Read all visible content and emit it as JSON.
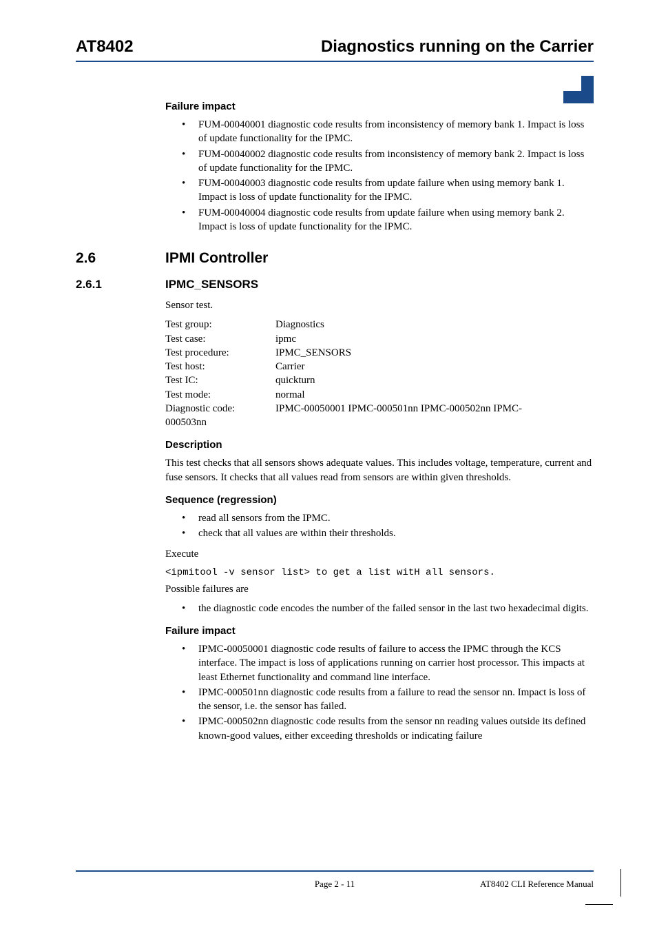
{
  "header": {
    "left": "AT8402",
    "right": "Diagnostics running on the Carrier"
  },
  "failure_impact_1": {
    "heading": "Failure impact",
    "bullets": [
      "FUM-00040001 diagnostic code results from inconsistency of memory bank 1. Impact is loss of update functionality for the IPMC.",
      "FUM-00040002 diagnostic code results from inconsistency of memory bank 2. Impact is loss of update functionality for the IPMC.",
      "FUM-00040003 diagnostic code results from update failure when using memory bank 1. Impact is loss of update functionality for the IPMC.",
      "FUM-00040004 diagnostic code results from update failure when using memory bank 2. Impact is loss of update functionality for the IPMC."
    ]
  },
  "section": {
    "num": "2.6",
    "title": "IPMI Controller"
  },
  "subsection": {
    "num": "2.6.1",
    "title": "IPMC_SENSORS",
    "intro": "Sensor test.",
    "kv": [
      {
        "label": "Test group:",
        "value": "Diagnostics"
      },
      {
        "label": "Test case:",
        "value": "ipmc"
      },
      {
        "label": "Test procedure:",
        "value": "IPMC_SENSORS"
      },
      {
        "label": "Test host:",
        "value": "Carrier"
      },
      {
        "label": "Test IC:",
        "value": "quickturn"
      },
      {
        "label": "Test mode:",
        "value": "normal"
      }
    ],
    "diag_label": "Diagnostic code:",
    "diag_value": "IPMC-00050001 IPMC-000501nn IPMC-000502nn IPMC-",
    "diag_value2": "000503nn"
  },
  "description": {
    "heading": "Description",
    "text": "This test checks that all sensors shows adequate values. This includes voltage, temperature, current and fuse sensors. It checks that all values read from sensors are within given thresholds."
  },
  "sequence": {
    "heading": "Sequence (regression)",
    "bullets": [
      "read all sensors from the IPMC.",
      "check that all values are within their thresholds."
    ],
    "execute_label": "Execute",
    "execute_cmd": "<ipmitool -v sensor list> to get a list witH all sensors.",
    "possible_label": "Possible failures are",
    "possible_bullets": [
      "the diagnostic code encodes the number of the failed sensor in the last two hexadecimal digits."
    ]
  },
  "failure_impact_2": {
    "heading": "Failure impact",
    "bullets": [
      "IPMC-00050001 diagnostic code results of failure to access the IPMC through the KCS interface. The impact is loss of applications running on carrier host processor. This impacts at least Ethernet functionality and command line interface.",
      "IPMC-000501nn diagnostic code results from a failure to read the sensor nn. Impact is loss of the sensor, i.e. the sensor has failed.",
      "IPMC-000502nn diagnostic code results from the sensor nn reading values outside its defined known-good values, either exceeding thresholds or indicating failure"
    ]
  },
  "footer": {
    "center": "Page 2 - 11",
    "right": "AT8402 CLI Reference Manual"
  },
  "colors": {
    "rule": "#1a4a8a",
    "text": "#000000",
    "background": "#ffffff"
  },
  "fonts": {
    "body": "Times New Roman",
    "heading": "Arial",
    "mono": "Courier New"
  }
}
